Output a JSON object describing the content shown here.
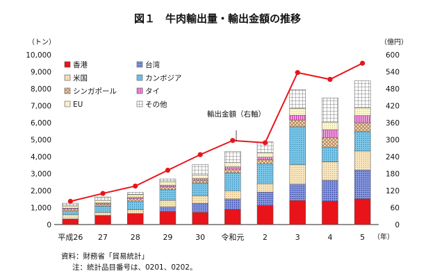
{
  "chart_data": {
    "type": "bar",
    "subtype": "stacked-bar-with-line",
    "title": "図１　牛肉輸出量・輸出金額の推移",
    "left_unit": "（トン）",
    "right_unit": "（億円）",
    "year_unit": "（年）",
    "categories": [
      "平成26",
      "27",
      "28",
      "29",
      "30",
      "令和元",
      "2",
      "3",
      "4",
      "5"
    ],
    "ylim": [
      0,
      10000
    ],
    "ylim_right": [
      0,
      600
    ],
    "yticks": [
      "0",
      "1,000",
      "2,000",
      "3,000",
      "4,000",
      "5,000",
      "6,000",
      "7,000",
      "8,000",
      "9,000",
      "10,000"
    ],
    "yticks_right": [
      "0",
      "60",
      "120",
      "180",
      "240",
      "300",
      "360",
      "420",
      "480",
      "540",
      "600"
    ],
    "series": [
      {
        "name": "香港",
        "color": "#e8141a",
        "pattern": "solid",
        "values": [
          330,
          540,
          650,
          760,
          720,
          890,
          1120,
          1420,
          1380,
          1520
        ]
      },
      {
        "name": "台湾",
        "color": "#5b6fc7",
        "pattern": "dots",
        "values": [
          0,
          0,
          0,
          280,
          530,
          620,
          790,
          960,
          1230,
          1690
        ]
      },
      {
        "name": "米国",
        "color": "#f3d9a4",
        "pattern": "dots",
        "values": [
          250,
          180,
          230,
          390,
          450,
          480,
          490,
          1150,
          1080,
          1120
        ]
      },
      {
        "name": "カンボジア",
        "color": "#3aa3d2",
        "pattern": "dots",
        "values": [
          210,
          360,
          500,
          620,
          750,
          1060,
          1180,
          2230,
          870,
          1140
        ]
      },
      {
        "name": "シンガポール",
        "color": "#c69a70",
        "pattern": "crosshatch",
        "values": [
          120,
          120,
          140,
          170,
          160,
          210,
          240,
          400,
          550,
          530
        ]
      },
      {
        "name": "タイ",
        "color": "#e060c0",
        "pattern": "vlines",
        "values": [
          60,
          70,
          80,
          100,
          100,
          140,
          150,
          280,
          480,
          420
        ]
      },
      {
        "name": "EU",
        "color": "#f6ee9a",
        "pattern": "dots",
        "values": [
          130,
          160,
          160,
          200,
          220,
          250,
          250,
          400,
          440,
          450
        ]
      },
      {
        "name": "その他",
        "color": "#9a9a9a",
        "pattern": "grid",
        "values": [
          160,
          200,
          130,
          170,
          600,
          650,
          650,
          1110,
          1430,
          1590
        ]
      }
    ],
    "line": {
      "name": "輸出金額（右軸）",
      "color": "#e8141a",
      "axis": "right",
      "values": [
        82,
        110,
        136,
        192,
        247,
        297,
        289,
        537,
        513,
        570
      ]
    },
    "line_label": "輸出金額（右軸）"
  },
  "notes": {
    "source": "資料：財務省「貿易統計」",
    "note": "注：統計品目番号は、0201、0202。"
  }
}
